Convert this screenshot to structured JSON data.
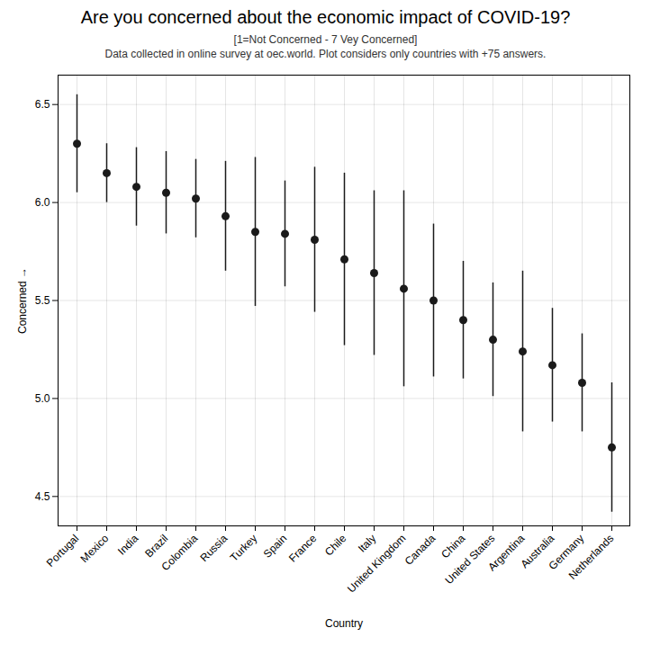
{
  "chart_data": {
    "type": "scatter",
    "title": "Are you concerned about the economic impact of COVID-19?",
    "subtitle": [
      "[1=Not Concerned - 7 Vey Concerned]",
      "Data collected in online survey at oec.world. Plot considers only countries with +75 answers."
    ],
    "xlabel": "Country",
    "ylabel": "Concerned",
    "categories": [
      "Portugal",
      "Mexico",
      "India",
      "Brazil",
      "Colombia",
      "Russia",
      "Turkey",
      "Spain",
      "France",
      "Chile",
      "Italy",
      "United Kingdom",
      "Canada",
      "China",
      "United States",
      "Argentina",
      "Australia",
      "Germany",
      "Netherlands"
    ],
    "values": [
      6.3,
      6.15,
      6.08,
      6.05,
      6.02,
      5.93,
      5.85,
      5.84,
      5.81,
      5.71,
      5.64,
      5.56,
      5.5,
      5.4,
      5.3,
      5.24,
      5.17,
      5.08,
      4.75
    ],
    "lower": [
      6.05,
      6.0,
      5.88,
      5.84,
      5.82,
      5.65,
      5.47,
      5.57,
      5.44,
      5.27,
      5.22,
      5.06,
      5.11,
      5.1,
      5.01,
      4.83,
      4.88,
      4.83,
      4.42
    ],
    "upper": [
      6.55,
      6.3,
      6.28,
      6.26,
      6.22,
      6.21,
      6.23,
      6.11,
      6.18,
      6.15,
      6.06,
      6.06,
      5.89,
      5.7,
      5.59,
      5.65,
      5.46,
      5.33,
      5.08
    ],
    "ylim": [
      4.35,
      6.65
    ],
    "yticks": [
      4.5,
      {
        "value": 5.0,
        "label": "5.0"
      },
      5.5,
      {
        "value": 6.0,
        "label": "6.0"
      },
      6.5
    ],
    "color": "#1a1a1a",
    "grid": true
  }
}
